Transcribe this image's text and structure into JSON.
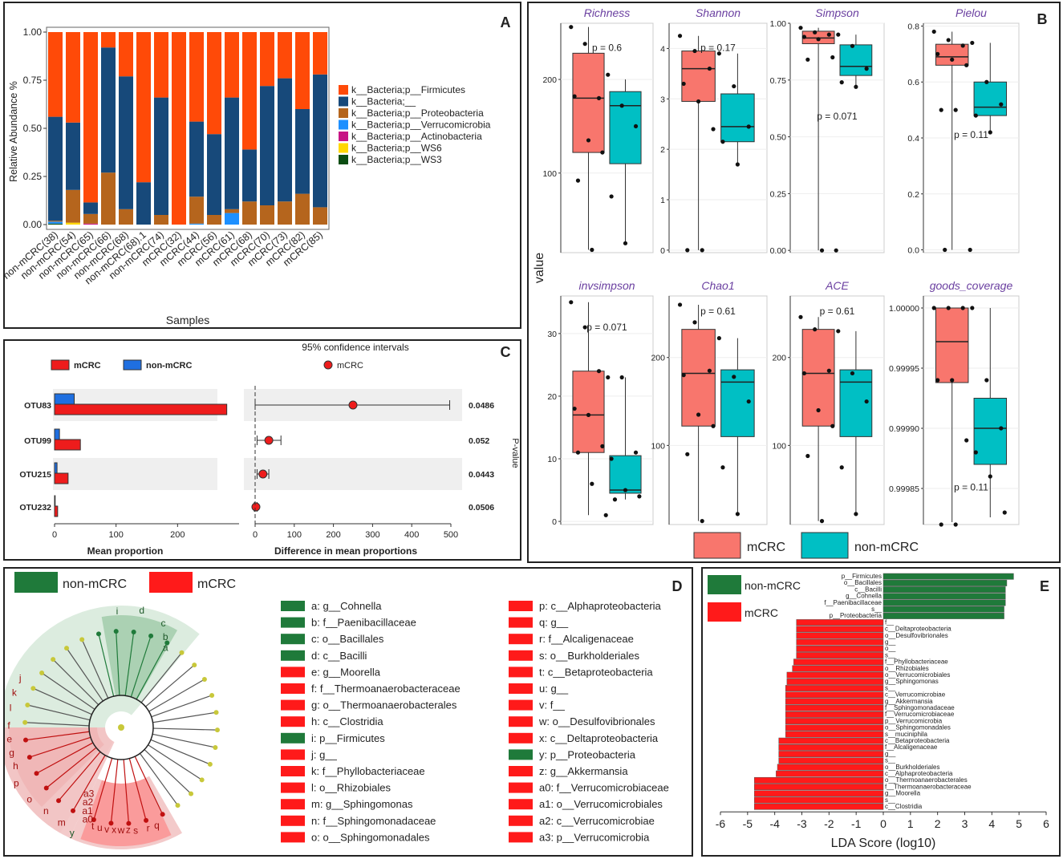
{
  "panelA": {
    "letter": "A",
    "ylabel": "Relative Abundance %",
    "xlabel": "Samples",
    "yticks": [
      "0.00",
      "0.25",
      "0.50",
      "0.75",
      "1.00"
    ],
    "samples": [
      "non-mCRC(38)",
      "non-mCRC(54)",
      "non-mCRC(65)",
      "non-mCRC(66)",
      "non-mCRC(68)",
      "non-mCRC(68).1",
      "non-mCRC(74)",
      "mCRC(32)",
      "mCRC(44)",
      "mCRC(56)",
      "mCRC(61)",
      "mCRC(68)",
      "mCRC(70)",
      "mCRC(73)",
      "mCRC(82)",
      "mCRC(85)"
    ],
    "legend": [
      "k__Bacteria;p__Firmicutes",
      "k__Bacteria;__",
      "k__Bacteria;p__Proteobacteria",
      "k__Bacteria;p__Verrucomicrobia",
      "k__Bacteria;p__Actinobacteria",
      "k__Bacteria;p__WS6",
      "k__Bacteria;p__WS3"
    ],
    "colors": [
      "#ff4a08",
      "#17497a",
      "#b5651d",
      "#1e90ff",
      "#c71585",
      "#ffd700",
      "#0b4d12"
    ]
  },
  "chart_data": [
    {
      "id": "A",
      "type": "bar",
      "stacked": true,
      "categories": [
        "non-mCRC(38)",
        "non-mCRC(54)",
        "non-mCRC(65)",
        "non-mCRC(66)",
        "non-mCRC(68)",
        "non-mCRC(68).1",
        "non-mCRC(74)",
        "mCRC(32)",
        "mCRC(44)",
        "mCRC(56)",
        "mCRC(61)",
        "mCRC(68)",
        "mCRC(70)",
        "mCRC(73)",
        "mCRC(82)",
        "mCRC(85)"
      ],
      "series": [
        {
          "name": "k__Bacteria;p__WS3",
          "values": [
            0.005,
            0,
            0,
            0,
            0,
            0,
            0,
            0,
            0,
            0,
            0,
            0,
            0,
            0,
            0,
            0
          ]
        },
        {
          "name": "k__Bacteria;p__WS6",
          "values": [
            0,
            0.01,
            0,
            0,
            0,
            0,
            0,
            0,
            0,
            0,
            0,
            0,
            0,
            0,
            0,
            0
          ]
        },
        {
          "name": "k__Bacteria;p__Actinobacteria",
          "values": [
            0,
            0,
            0.005,
            0,
            0,
            0,
            0,
            0,
            0,
            0,
            0,
            0,
            0,
            0,
            0,
            0
          ]
        },
        {
          "name": "k__Bacteria;p__Verrucomicrobia",
          "values": [
            0.01,
            0,
            0,
            0,
            0,
            0,
            0,
            0,
            0.005,
            0,
            0.06,
            0,
            0,
            0,
            0,
            0
          ]
        },
        {
          "name": "k__Bacteria;p__Proteobacteria",
          "values": [
            0.005,
            0.17,
            0.05,
            0.27,
            0.08,
            0,
            0.05,
            0,
            0.14,
            0.05,
            0.02,
            0.12,
            0.1,
            0.12,
            0.16,
            0.09
          ]
        },
        {
          "name": "k__Bacteria;__",
          "values": [
            0.54,
            0.35,
            0.06,
            0.65,
            0.69,
            0.22,
            0.61,
            0,
            0.39,
            0.42,
            0.58,
            0.27,
            0.62,
            0.64,
            0.44,
            0.69
          ]
        },
        {
          "name": "k__Bacteria;p__Firmicutes",
          "values": [
            0.44,
            0.47,
            0.885,
            0.08,
            0.23,
            0.78,
            0.34,
            1.0,
            0.465,
            0.53,
            0.34,
            0.61,
            0.28,
            0.24,
            0.4,
            0.22
          ]
        }
      ],
      "ylim": [
        0,
        1
      ],
      "xlabel": "Samples",
      "ylabel": "Relative Abundance %"
    },
    {
      "id": "B",
      "type": "box",
      "groups": [
        "mCRC",
        "non-mCRC"
      ],
      "facets": [
        {
          "title": "Richness",
          "pval": "p = 0.6",
          "ylim": [
            15,
            260
          ],
          "yticks": [
            100,
            200
          ],
          "mCRC": {
            "q1": 122,
            "med": 180,
            "q3": 228,
            "lo": 18,
            "hi": 256,
            "pts": [
              256,
              238,
              180,
              182,
              135,
              122,
              92,
              18
            ]
          },
          "non": {
            "q1": 110,
            "med": 172,
            "q3": 187,
            "lo": 25,
            "hi": 200,
            "pts": [
              205,
              172,
              150,
              75,
              25
            ]
          }
        },
        {
          "title": "Shannon",
          "pval": "p = 0.17",
          "ylim": [
            -0.05,
            4.5
          ],
          "yticks": [
            0,
            1,
            2,
            3,
            4
          ],
          "mCRC": {
            "q1": 2.95,
            "med": 3.6,
            "q3": 3.95,
            "lo": 0,
            "hi": 4.25,
            "pts": [
              4.25,
              3.95,
              3.6,
              3.3,
              2.95,
              2.4,
              0,
              0
            ]
          },
          "non": {
            "q1": 2.15,
            "med": 2.45,
            "q3": 3.1,
            "lo": 1.7,
            "hi": 3.9,
            "pts": [
              3.9,
              3.25,
              2.45,
              2.15,
              1.7
            ]
          }
        },
        {
          "title": "Simpson",
          "pval": "p = 0.071",
          "ylim": [
            -0.01,
            1.0
          ],
          "yticks": [
            0.0,
            0.25,
            0.5,
            0.75,
            1.0
          ],
          "mCRC": {
            "q1": 0.91,
            "med": 0.935,
            "q3": 0.965,
            "lo": 0,
            "hi": 0.98,
            "pts": [
              0.98,
              0.96,
              0.95,
              0.94,
              0.93,
              0.85,
              0.84,
              0,
              0
            ]
          },
          "non": {
            "q1": 0.77,
            "med": 0.81,
            "q3": 0.905,
            "lo": 0.72,
            "hi": 0.95,
            "pts": [
              0.95,
              0.9,
              0.8,
              0.74,
              0.72
            ]
          }
        },
        {
          "title": "Pielou",
          "pval": "p = 0.11",
          "ylim": [
            -0.01,
            0.81
          ],
          "yticks": [
            0.0,
            0.2,
            0.4,
            0.6,
            0.8
          ],
          "mCRC": {
            "q1": 0.66,
            "med": 0.69,
            "q3": 0.735,
            "lo": 0,
            "hi": 0.78,
            "pts": [
              0.78,
              0.75,
              0.73,
              0.7,
              0.68,
              0.66,
              0.5,
              0.5,
              0,
              0
            ]
          },
          "non": {
            "q1": 0.48,
            "med": 0.51,
            "q3": 0.6,
            "lo": 0.42,
            "hi": 0.74,
            "pts": [
              0.74,
              0.6,
              0.52,
              0.48,
              0.42
            ]
          }
        },
        {
          "title": "invsimpson",
          "pval": "p = 0.071",
          "ylim": [
            -0.5,
            36
          ],
          "yticks": [
            0,
            10,
            20,
            30
          ],
          "mCRC": {
            "q1": 11,
            "med": 17,
            "q3": 24,
            "lo": 1,
            "hi": 35,
            "pts": [
              35,
              31,
              24,
              18,
              17,
              12,
              11,
              6,
              1
            ]
          },
          "non": {
            "q1": 4.5,
            "med": 5,
            "q3": 10.5,
            "lo": 3.5,
            "hi": 23,
            "pts": [
              23,
              23,
              11,
              10,
              5,
              4,
              3.5
            ]
          }
        },
        {
          "title": "Chao1",
          "pval": "p = 0.61",
          "ylim": [
            10,
            270
          ],
          "yticks": [
            100,
            200
          ],
          "mCRC": {
            "q1": 122,
            "med": 182,
            "q3": 232,
            "lo": 14,
            "hi": 260,
            "pts": [
              260,
              240,
              185,
              180,
              135,
              122,
              90,
              14
            ]
          },
          "non": {
            "q1": 110,
            "med": 172,
            "q3": 186,
            "lo": 22,
            "hi": 222,
            "pts": [
              222,
              178,
              150,
              75,
              22
            ]
          }
        },
        {
          "title": "ACE",
          "pval": "p = 0.61",
          "ylim": [
            10,
            270
          ],
          "yticks": [
            100,
            200
          ],
          "mCRC": {
            "q1": 122,
            "med": 182,
            "q3": 232,
            "lo": 14,
            "hi": 246,
            "pts": [
              246,
              232,
              185,
              182,
              140,
              122,
              88,
              14
            ]
          },
          "non": {
            "q1": 110,
            "med": 172,
            "q3": 186,
            "lo": 22,
            "hi": 230,
            "pts": [
              230,
              182,
              150,
              75,
              22
            ]
          }
        },
        {
          "title": "goods_coverage",
          "pval": "p = 0.11",
          "ylim": [
            0.99982,
            1.00001
          ],
          "yticks": [
            0.99985,
            0.9999,
            0.99995,
            1.0
          ],
          "mCRC": {
            "q1": 0.999938,
            "med": 0.999972,
            "q3": 1.0,
            "lo": 0.999822,
            "hi": 1.0,
            "pts": [
              1.0,
              1.0,
              1.0,
              0.99994,
              0.99994,
              0.99989,
              0.99982,
              0.99982
            ]
          },
          "non": {
            "q1": 0.99987,
            "med": 0.9999,
            "q3": 0.999925,
            "lo": 0.999826,
            "hi": 1.0,
            "pts": [
              1.0,
              0.99994,
              0.9999,
              0.99988,
              0.99986,
              0.99983
            ]
          }
        }
      ],
      "ylabel": "value"
    },
    {
      "id": "C",
      "type": "bar",
      "orientation": "horizontal",
      "categories": [
        "OTU83",
        "OTU99",
        "OTU215",
        "OTU232"
      ],
      "series": [
        {
          "name": "mCRC",
          "values": [
            280,
            42,
            22,
            5
          ]
        },
        {
          "name": "non-mCRC",
          "values": [
            32,
            8,
            4,
            1
          ]
        }
      ],
      "diff": [
        250,
        35,
        20,
        2
      ],
      "ci_low": [
        0,
        5,
        5,
        -2
      ],
      "ci_high": [
        497,
        66,
        35,
        5
      ],
      "pvalues": [
        "0.0486",
        "0.052",
        "0.0443",
        "0.0506"
      ],
      "xlabel_left": "Mean proportion",
      "xlabel_right": "Difference in mean proportions",
      "title": "95% confidence intervals",
      "ylabel_right": "P-value",
      "xticks_left": [
        0,
        100,
        200
      ],
      "xticks_right": [
        0,
        100,
        200,
        300,
        400,
        500
      ]
    },
    {
      "id": "E",
      "type": "bar",
      "orientation": "horizontal",
      "xlabel": "LDA Score (log10)",
      "xlim": [
        -6,
        6
      ],
      "categories": [
        "p__Firmicutes",
        "o__Bacillales",
        "c__Bacilli",
        "g__Cohnella",
        "f__Paenibacillaceae",
        "s__",
        "p__Proteobacteria",
        "f__",
        "c__Deltaproteobacteria",
        "o__Desulfovibrionales",
        "g__",
        "o__",
        "s__",
        "f__Phyllobacteriaceae",
        "o__Rhizobiales",
        "o__Verrucomicrobiales",
        "g__Sphingomonas",
        "s__",
        "c__Verrucomicrobiae",
        "g__Akkermansia",
        "f__Sphingomonadaceae",
        "f__Verrucomicrobiaceae",
        "p__Verrucomicrobia",
        "o__Sphingomonadales",
        "s__muciniphila",
        "c__Betaproteobacteria",
        "f__Alcaligenaceae",
        "g__",
        "s__",
        "o__Burkholderiales",
        "c__Alphaproteobacteria",
        "o__Thermoanaerobacterales",
        "f__Thermoanaerobacteraceae",
        "g__Moorella",
        "s__",
        "c__Clostridia"
      ],
      "values": [
        4.8,
        4.55,
        4.5,
        4.5,
        4.5,
        4.45,
        4.45,
        -3.2,
        -3.2,
        -3.2,
        -3.2,
        -3.2,
        -3.2,
        -3.3,
        -3.35,
        -3.55,
        -3.55,
        -3.6,
        -3.6,
        -3.6,
        -3.6,
        -3.6,
        -3.6,
        -3.6,
        -3.6,
        -3.85,
        -3.85,
        -3.85,
        -3.85,
        -3.9,
        -3.95,
        -4.75,
        -4.75,
        -4.75,
        -4.75,
        -4.75
      ],
      "groups": [
        "non-mCRC",
        "non-mCRC",
        "non-mCRC",
        "non-mCRC",
        "non-mCRC",
        "non-mCRC",
        "non-mCRC",
        "mCRC",
        "mCRC",
        "mCRC",
        "mCRC",
        "mCRC",
        "mCRC",
        "mCRC",
        "mCRC",
        "mCRC",
        "mCRC",
        "mCRC",
        "mCRC",
        "mCRC",
        "mCRC",
        "mCRC",
        "mCRC",
        "mCRC",
        "mCRC",
        "mCRC",
        "mCRC",
        "mCRC",
        "mCRC",
        "mCRC",
        "mCRC",
        "mCRC",
        "mCRC",
        "mCRC",
        "mCRC",
        "mCRC"
      ]
    }
  ],
  "panelB": {
    "letter": "B",
    "ylabel": "value",
    "legend": [
      "mCRC",
      "non-mCRC"
    ],
    "colors": [
      "#f8766d",
      "#00bfc4"
    ]
  },
  "panelC": {
    "letter": "C",
    "legend": [
      "mCRC",
      "non-mCRC"
    ],
    "ci_legend": "mCRC",
    "title": "95% confidence intervals",
    "colors": [
      "#ee1c1c",
      "#1f6fe0"
    ]
  },
  "panelD": {
    "letter": "D",
    "legend": [
      "non-mCRC",
      "mCRC"
    ],
    "colors": [
      "#1f7a3a",
      "#ff1a1a"
    ],
    "clade_letters": [
      "i",
      "d",
      "c",
      "b",
      "a",
      "h",
      "g",
      "e",
      "f",
      "l",
      "k",
      "j",
      "p",
      "o",
      "n",
      "m",
      "y",
      "s",
      "r",
      "w",
      "x",
      "v",
      "u",
      "t",
      "q",
      "a0",
      "a1",
      "a2",
      "a3",
      "z"
    ],
    "entries": [
      {
        "t": "a: g__Cohnella",
        "g": 0
      },
      {
        "t": "b: f__Paenibacillaceae",
        "g": 0
      },
      {
        "t": "c: o__Bacillales",
        "g": 0
      },
      {
        "t": "d: c__Bacilli",
        "g": 0
      },
      {
        "t": "e: g__Moorella",
        "g": 1
      },
      {
        "t": "f: f__Thermoanaerobacteraceae",
        "g": 1
      },
      {
        "t": "g: o__Thermoanaerobacterales",
        "g": 1
      },
      {
        "t": "h: c__Clostridia",
        "g": 1
      },
      {
        "t": "i: p__Firmicutes",
        "g": 0
      },
      {
        "t": "j: g__",
        "g": 1
      },
      {
        "t": "k: f__Phyllobacteriaceae",
        "g": 1
      },
      {
        "t": "l: o__Rhizobiales",
        "g": 1
      },
      {
        "t": "m: g__Sphingomonas",
        "g": 1
      },
      {
        "t": "n: f__Sphingomonadaceae",
        "g": 1
      },
      {
        "t": "o: o__Sphingomonadales",
        "g": 1
      },
      {
        "t": "p: c__Alphaproteobacteria",
        "g": 1
      },
      {
        "t": "q: g__",
        "g": 1
      },
      {
        "t": "r: f__Alcaligenaceae",
        "g": 1
      },
      {
        "t": "s: o__Burkholderiales",
        "g": 1
      },
      {
        "t": "t: c__Betaproteobacteria",
        "g": 1
      },
      {
        "t": "u: g__",
        "g": 1
      },
      {
        "t": "v: f__",
        "g": 1
      },
      {
        "t": "w: o__Desulfovibrionales",
        "g": 1
      },
      {
        "t": "x: c__Deltaproteobacteria",
        "g": 1
      },
      {
        "t": "y: p__Proteobacteria",
        "g": 0
      },
      {
        "t": "z: g__Akkermansia",
        "g": 1
      },
      {
        "t": "a0: f__Verrucomicrobiaceae",
        "g": 1
      },
      {
        "t": "a1: o__Verrucomicrobiales",
        "g": 1
      },
      {
        "t": "a2: c__Verrucomicrobiae",
        "g": 1
      },
      {
        "t": "a3: p__Verrucomicrobia",
        "g": 1
      }
    ]
  },
  "panelE": {
    "letter": "E",
    "legend": [
      "non-mCRC",
      "mCRC"
    ],
    "colors": [
      "#1f7a3a",
      "#ff1a1a"
    ],
    "xticks": [
      "-6",
      "-5",
      "-4",
      "-3",
      "-2",
      "-1",
      "0",
      "1",
      "2",
      "3",
      "4",
      "5",
      "6"
    ]
  }
}
